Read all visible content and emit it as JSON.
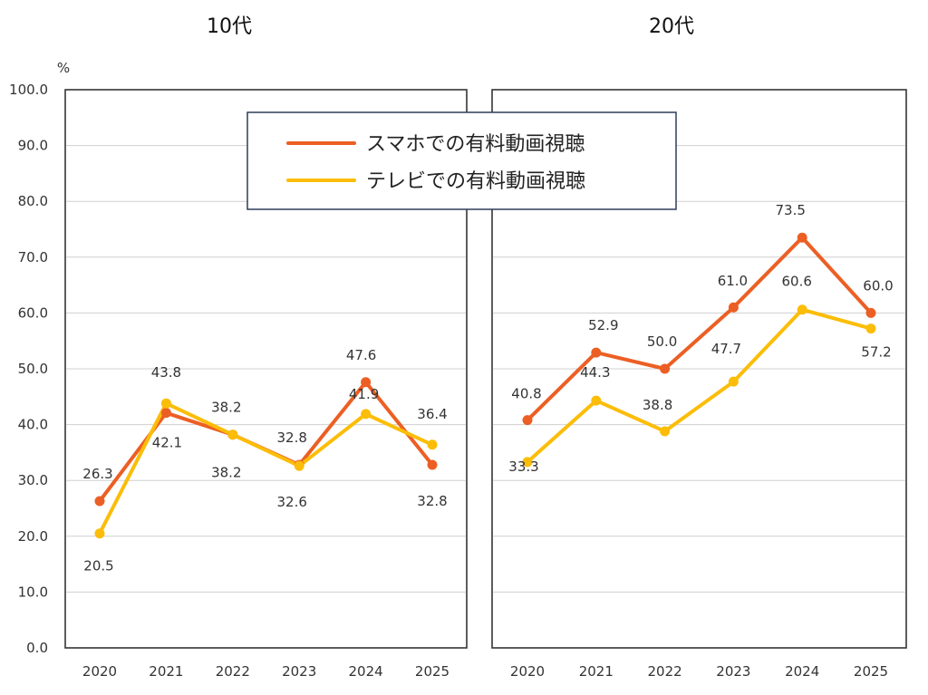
{
  "chart_data": {
    "type": "line",
    "y_unit": "%",
    "ylim": [
      0,
      100
    ],
    "y_ticks": [
      "0.0",
      "10.0",
      "20.0",
      "30.0",
      "40.0",
      "50.0",
      "60.0",
      "70.0",
      "80.0",
      "90.0",
      "100.0"
    ],
    "grid": true,
    "legend_position": "top-center",
    "categories": [
      "2020",
      "2021",
      "2022",
      "2023",
      "2024",
      "2025"
    ],
    "series_meta": [
      {
        "name": "スマホでの有料動画視聴",
        "color": "#ec5f24"
      },
      {
        "name": "テレビでの有料動画視聴",
        "color": "#fbbd08"
      }
    ],
    "panels": [
      {
        "title": "10代",
        "series": [
          {
            "name": "スマホでの有料動画視聴",
            "values": [
              26.3,
              42.1,
              38.2,
              32.8,
              47.6,
              32.8
            ],
            "labels": [
              "26.3",
              "42.1",
              "38.2",
              "32.8",
              "47.6",
              "32.8"
            ]
          },
          {
            "name": "テレビでの有料動画視聴",
            "values": [
              20.5,
              43.8,
              38.2,
              32.6,
              41.9,
              36.4
            ],
            "labels": [
              "20.5",
              "43.8",
              "38.2",
              "32.6",
              "41.9",
              "36.4"
            ]
          }
        ]
      },
      {
        "title": "20代",
        "series": [
          {
            "name": "スマホでの有料動画視聴",
            "values": [
              40.8,
              52.9,
              50.0,
              61.0,
              73.5,
              60.0
            ],
            "labels": [
              "40.8",
              "52.9",
              "50.0",
              "61.0",
              "73.5",
              "60.0"
            ]
          },
          {
            "name": "テレビでの有料動画視聴",
            "values": [
              33.3,
              44.3,
              38.8,
              47.7,
              60.6,
              57.2
            ],
            "labels": [
              "33.3",
              "44.3",
              "38.8",
              "47.7",
              "60.6",
              "57.2"
            ]
          }
        ]
      }
    ]
  }
}
